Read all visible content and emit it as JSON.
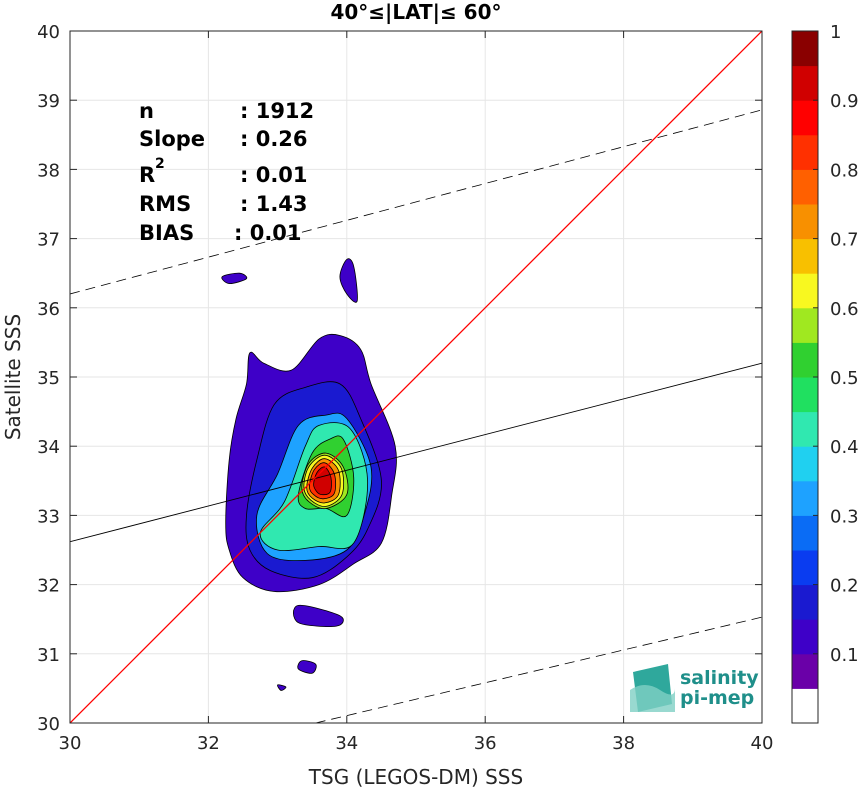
{
  "chart_data": {
    "type": "contour",
    "title": "40°≤|LAT|≤ 60°",
    "xlabel": "TSG (LEGOS-DM) SSS",
    "ylabel": "Satellite SSS",
    "xlim": [
      30,
      40
    ],
    "ylim": [
      30,
      40
    ],
    "xticks": [
      "30",
      "32",
      "34",
      "36",
      "38",
      "40"
    ],
    "yticks": [
      "30",
      "31",
      "32",
      "33",
      "34",
      "35",
      "36",
      "37",
      "38",
      "39",
      "40"
    ],
    "grid": true,
    "stats": [
      {
        "label": "n",
        "value": ": 1912"
      },
      {
        "label": "Slope",
        "value": ": 0.26"
      },
      {
        "label": "R",
        "sup": "2",
        "value": ": 0.01"
      },
      {
        "label": "RMS",
        "value": ": 1.43"
      },
      {
        "label": "BIAS",
        "value": ": 0.01"
      }
    ],
    "identity_line": {
      "color": "#ff0000",
      "from": [
        30,
        30
      ],
      "to": [
        40,
        40
      ]
    },
    "fit_line": {
      "color": "#000000",
      "points": [
        [
          30,
          32.62
        ],
        [
          40,
          35.2
        ]
      ]
    },
    "upper_bound_line": {
      "style": "dashed",
      "points": [
        [
          30,
          36.2
        ],
        [
          40,
          38.86
        ]
      ]
    },
    "lower_bound_line": {
      "style": "dashed",
      "points": [
        [
          33.55,
          30
        ],
        [
          40,
          31.53
        ]
      ]
    },
    "density_peak": {
      "x": 33.65,
      "y": 33.45
    },
    "colorbar": {
      "range": [
        0,
        1
      ],
      "ticks": [
        "0.1",
        "0.2",
        "0.3",
        "0.4",
        "0.5",
        "0.6",
        "0.7",
        "0.8",
        "0.9",
        "1"
      ],
      "colors": [
        "#ffffff",
        "#6a00a8",
        "#3e00c8",
        "#1a1ad0",
        "#0a3cf0",
        "#0a6cf5",
        "#1ea2ff",
        "#20d0f0",
        "#30e8b0",
        "#20e060",
        "#30d030",
        "#a0e820",
        "#f8f820",
        "#f8c000",
        "#f89000",
        "#ff6000",
        "#ff3000",
        "#ff0000",
        "#d00000",
        "#8a0000"
      ]
    },
    "contours": [
      {
        "level": 0.05,
        "color": "#3e00c8",
        "points": [
          [
            32.25,
            32.9
          ],
          [
            32.3,
            33.8
          ],
          [
            32.4,
            34.4
          ],
          [
            32.55,
            34.9
          ],
          [
            32.6,
            35.35
          ],
          [
            32.8,
            35.2
          ],
          [
            33.2,
            35.1
          ],
          [
            33.6,
            35.55
          ],
          [
            33.9,
            35.6
          ],
          [
            34.2,
            35.4
          ],
          [
            34.35,
            34.9
          ],
          [
            34.7,
            34.0
          ],
          [
            34.65,
            33.3
          ],
          [
            34.5,
            32.6
          ],
          [
            34.1,
            32.3
          ],
          [
            33.6,
            32.0
          ],
          [
            32.95,
            31.9
          ],
          [
            32.5,
            32.1
          ],
          [
            32.3,
            32.5
          ]
        ]
      },
      {
        "level": 0.05,
        "color": "#3e00c8",
        "points": [
          [
            32.2,
            36.45
          ],
          [
            32.45,
            36.5
          ],
          [
            32.55,
            36.42
          ],
          [
            32.3,
            36.35
          ]
        ]
      },
      {
        "level": 0.05,
        "color": "#3e00c8",
        "points": [
          [
            34.0,
            36.7
          ],
          [
            34.1,
            36.6
          ],
          [
            34.15,
            36.1
          ],
          [
            34.0,
            36.2
          ],
          [
            33.9,
            36.45
          ]
        ]
      },
      {
        "level": 0.05,
        "color": "#3e00c8",
        "points": [
          [
            33.3,
            31.7
          ],
          [
            33.9,
            31.55
          ],
          [
            33.85,
            31.4
          ],
          [
            33.3,
            31.45
          ]
        ]
      },
      {
        "level": 0.05,
        "color": "#3e00c8",
        "points": [
          [
            33.35,
            30.9
          ],
          [
            33.55,
            30.85
          ],
          [
            33.5,
            30.72
          ],
          [
            33.3,
            30.78
          ]
        ]
      },
      {
        "level": 0.05,
        "color": "#3e00c8",
        "points": [
          [
            33.0,
            30.55
          ],
          [
            33.12,
            30.52
          ],
          [
            33.05,
            30.47
          ]
        ]
      },
      {
        "level": 0.15,
        "color": "#1a1ad0",
        "points": [
          [
            32.55,
            33.0
          ],
          [
            32.7,
            33.8
          ],
          [
            32.95,
            34.6
          ],
          [
            33.4,
            34.85
          ],
          [
            33.9,
            34.9
          ],
          [
            34.2,
            34.4
          ],
          [
            34.5,
            33.5
          ],
          [
            34.3,
            32.8
          ],
          [
            34.0,
            32.4
          ],
          [
            33.5,
            32.1
          ],
          [
            32.9,
            32.2
          ],
          [
            32.6,
            32.5
          ]
        ]
      },
      {
        "level": 0.25,
        "color": "#1ea2ff",
        "points": [
          [
            32.7,
            33.0
          ],
          [
            33.0,
            33.6
          ],
          [
            33.3,
            34.3
          ],
          [
            33.7,
            34.45
          ],
          [
            34.0,
            34.4
          ],
          [
            34.35,
            33.7
          ],
          [
            34.25,
            33.0
          ],
          [
            34.0,
            32.5
          ],
          [
            33.4,
            32.35
          ],
          [
            32.85,
            32.45
          ]
        ]
      },
      {
        "level": 0.35,
        "color": "#30e8b0",
        "points": [
          [
            32.75,
            32.75
          ],
          [
            33.1,
            33.2
          ],
          [
            33.4,
            34.0
          ],
          [
            33.6,
            34.3
          ],
          [
            34.05,
            34.25
          ],
          [
            34.3,
            33.5
          ],
          [
            34.1,
            32.6
          ],
          [
            33.6,
            32.55
          ],
          [
            33.0,
            32.5
          ]
        ]
      },
      {
        "level": 0.45,
        "color": "#30d030",
        "points": [
          [
            33.3,
            33.3
          ],
          [
            33.5,
            33.9
          ],
          [
            33.75,
            34.1
          ],
          [
            33.95,
            34.1
          ],
          [
            34.1,
            33.55
          ],
          [
            34.0,
            33.0
          ],
          [
            33.7,
            33.1
          ],
          [
            33.4,
            33.1
          ]
        ]
      },
      {
        "level": 0.55,
        "color": "#a0e820",
        "points": [
          [
            33.35,
            33.4
          ],
          [
            33.45,
            33.75
          ],
          [
            33.7,
            33.9
          ],
          [
            33.95,
            33.7
          ],
          [
            34.0,
            33.3
          ],
          [
            33.7,
            33.1
          ],
          [
            33.45,
            33.2
          ]
        ]
      },
      {
        "level": 0.65,
        "color": "#f8f820",
        "points": [
          [
            33.38,
            33.4
          ],
          [
            33.45,
            33.7
          ],
          [
            33.68,
            33.87
          ],
          [
            33.92,
            33.68
          ],
          [
            33.93,
            33.3
          ],
          [
            33.7,
            33.13
          ],
          [
            33.48,
            33.22
          ]
        ]
      },
      {
        "level": 0.75,
        "color": "#f89000",
        "points": [
          [
            33.42,
            33.4
          ],
          [
            33.5,
            33.68
          ],
          [
            33.68,
            33.82
          ],
          [
            33.88,
            33.65
          ],
          [
            33.88,
            33.3
          ],
          [
            33.68,
            33.18
          ],
          [
            33.5,
            33.25
          ]
        ]
      },
      {
        "level": 0.85,
        "color": "#ff3000",
        "points": [
          [
            33.46,
            33.42
          ],
          [
            33.53,
            33.66
          ],
          [
            33.68,
            33.76
          ],
          [
            33.82,
            33.6
          ],
          [
            33.82,
            33.32
          ],
          [
            33.66,
            33.24
          ],
          [
            33.52,
            33.3
          ]
        ]
      },
      {
        "level": 0.95,
        "color": "#d00000",
        "points": [
          [
            33.52,
            33.45
          ],
          [
            33.57,
            33.62
          ],
          [
            33.68,
            33.7
          ],
          [
            33.77,
            33.55
          ],
          [
            33.76,
            33.34
          ],
          [
            33.64,
            33.3
          ],
          [
            33.56,
            33.35
          ]
        ]
      }
    ]
  },
  "logo": {
    "line1": "salinity",
    "line2": "pi-mep"
  }
}
